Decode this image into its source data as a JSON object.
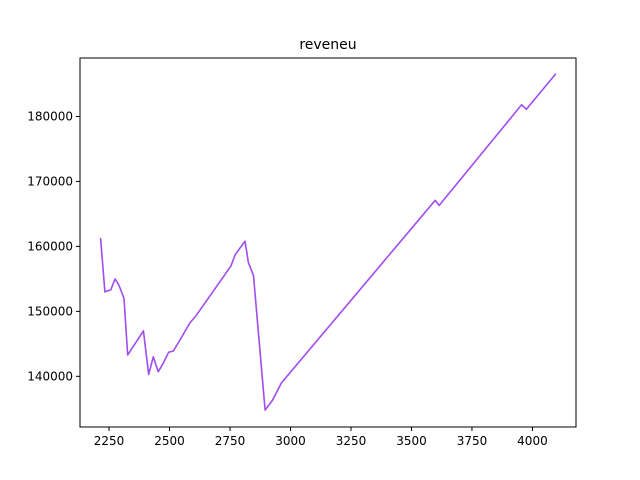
{
  "chart_data": {
    "type": "line",
    "title": "reveneu",
    "xlabel": "",
    "ylabel": "",
    "xlim": [
      2130,
      4180
    ],
    "ylim": [
      132200,
      189000
    ],
    "grid": false,
    "x_ticks": [
      2250,
      2500,
      2750,
      3000,
      3250,
      3500,
      3750,
      4000
    ],
    "x_tick_labels": [
      "2250",
      "2500",
      "2750",
      "3000",
      "3250",
      "3500",
      "3750",
      "4000"
    ],
    "y_ticks": [
      140000,
      150000,
      160000,
      170000,
      180000
    ],
    "y_tick_labels": [
      "140000",
      "150000",
      "160000",
      "170000",
      "180000"
    ],
    "series": [
      {
        "color": "#a04cf0",
        "x": [
          2215,
          2233,
          2257,
          2275,
          2291,
          2312,
          2327,
          2392,
          2414,
          2433,
          2453,
          2474,
          2496,
          2516,
          2586,
          2607,
          2754,
          2771,
          2812,
          2826,
          2847,
          2895,
          2925,
          2963,
          3598,
          3614,
          3955,
          3975,
          4095
        ],
        "y": [
          161200,
          153000,
          153300,
          155000,
          154000,
          152000,
          143300,
          147000,
          140300,
          143000,
          140700,
          142000,
          143700,
          143900,
          148300,
          149200,
          157000,
          158700,
          160800,
          157500,
          155500,
          134800,
          136300,
          139000,
          167100,
          166300,
          181800,
          181100,
          186500
        ]
      }
    ]
  }
}
